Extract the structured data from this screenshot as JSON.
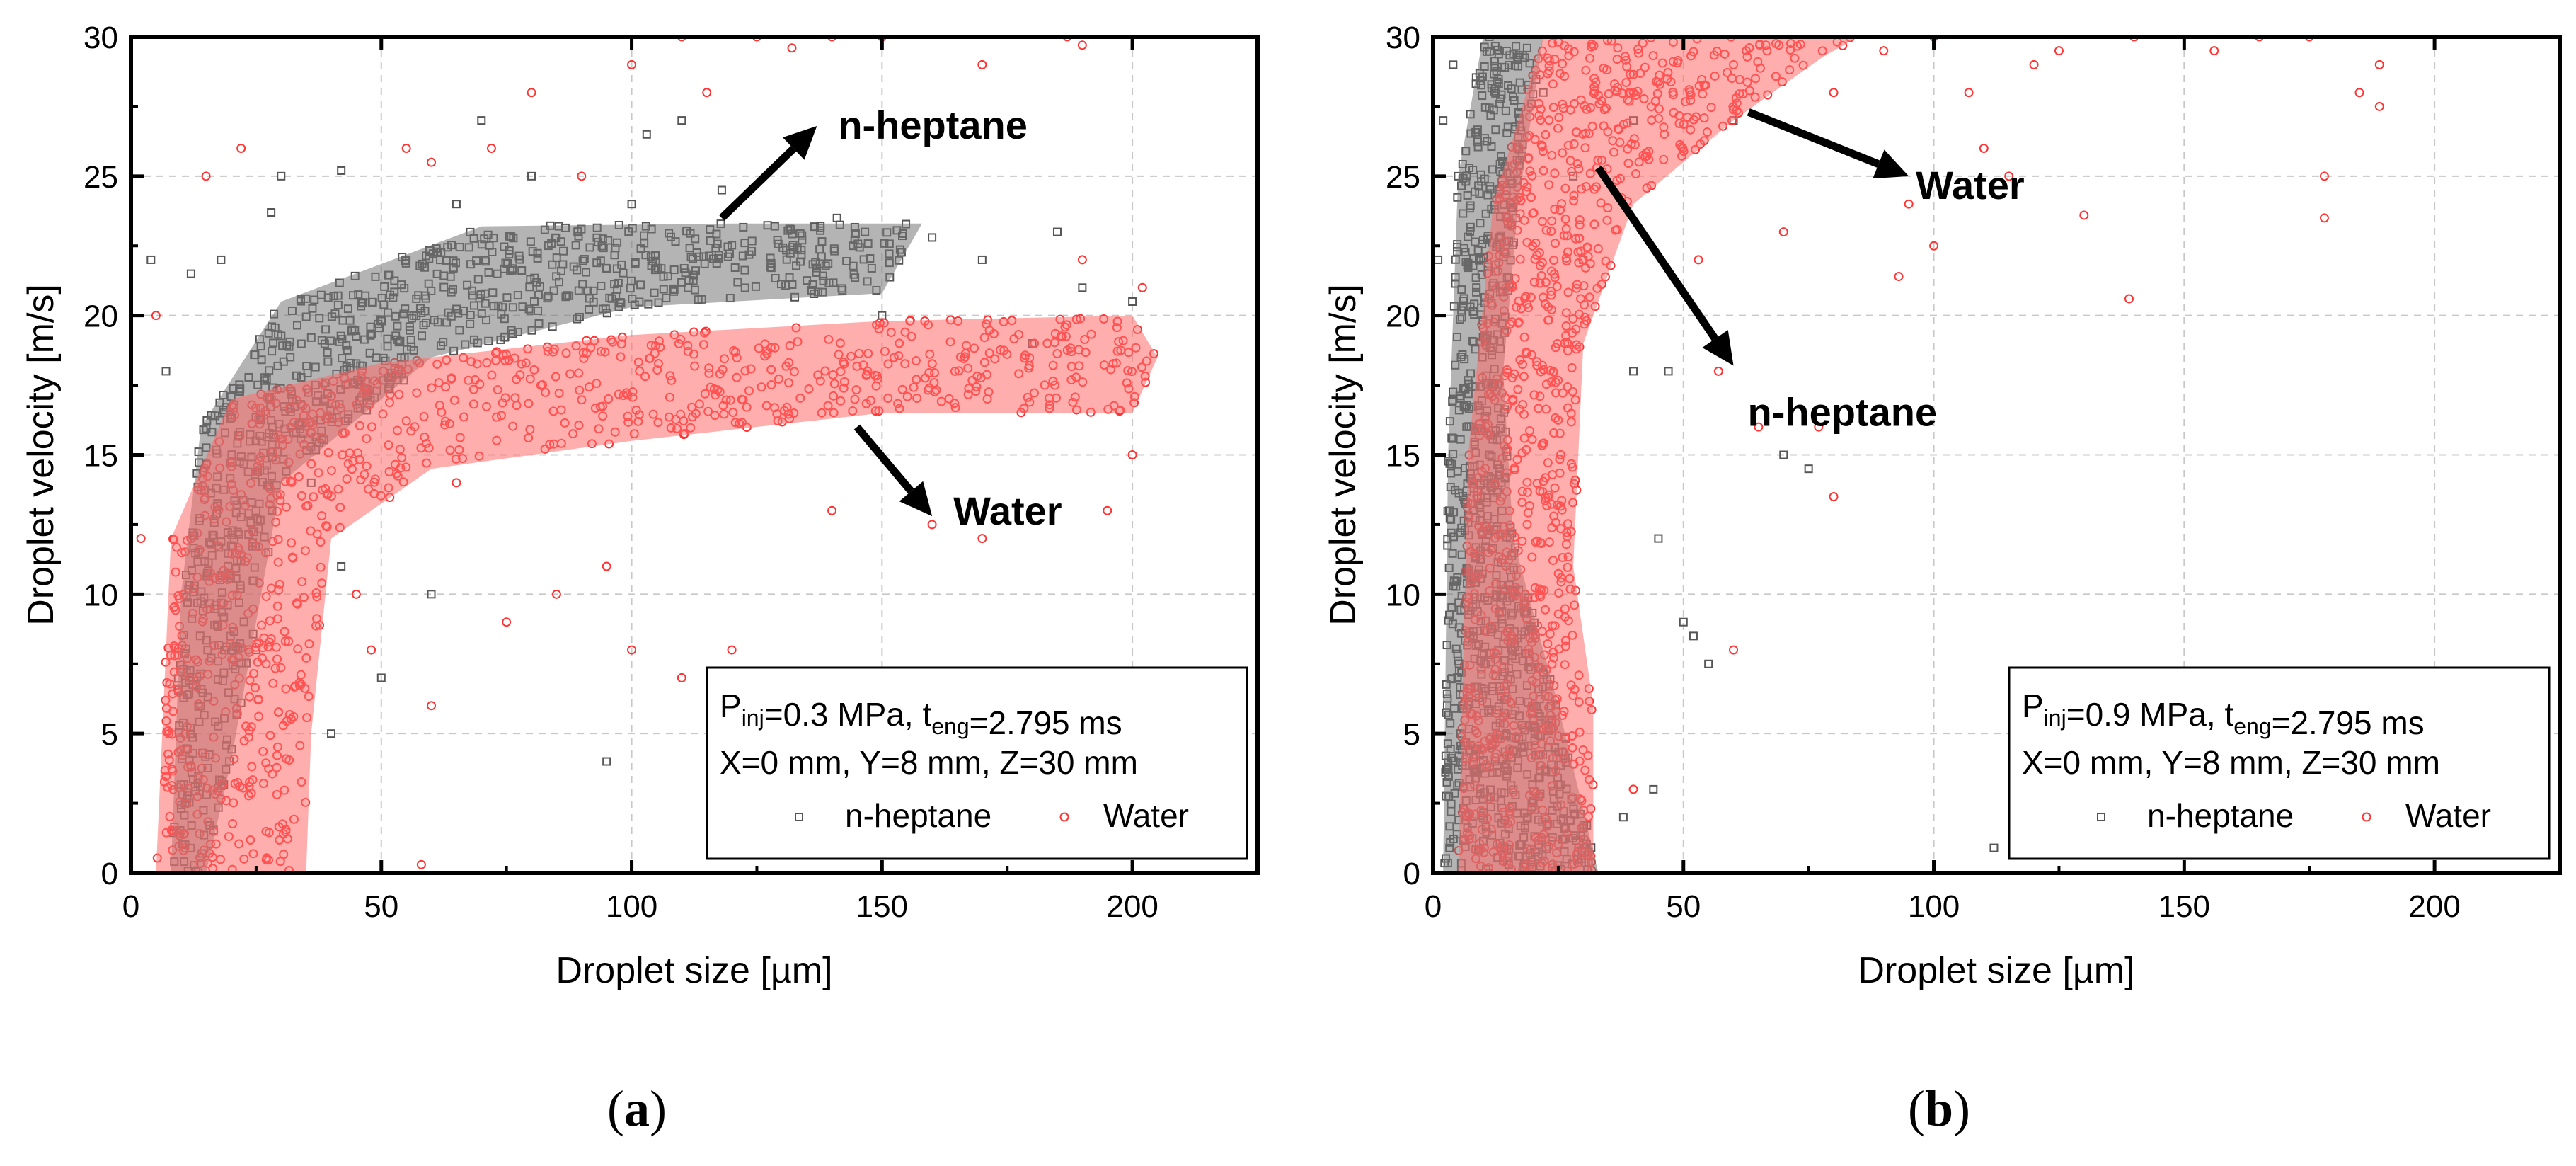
{
  "figure": {
    "panel_labels": [
      {
        "open": "(",
        "letter": "a",
        "close": ")"
      },
      {
        "open": "(",
        "letter": "b",
        "close": ")"
      }
    ],
    "colors": {
      "heptane": "#555555",
      "water": "#ff3333",
      "heptane_band": "#777777",
      "water_band": "#ff6b6b"
    }
  },
  "chart_data": [
    {
      "type": "scatter",
      "panel": "a",
      "xlabel": "Droplet size [µm]",
      "ylabel": "Droplet velocity [m/s]",
      "xlim": [
        0,
        225
      ],
      "ylim": [
        0,
        30
      ],
      "xticks": [
        0,
        50,
        100,
        150,
        200
      ],
      "yticks": [
        0,
        5,
        10,
        15,
        20,
        25,
        30
      ],
      "grid": true,
      "legend_position": "bottom-right",
      "info": {
        "line1": {
          "p": "P",
          "p_sub": "inj",
          "p_val": "=0.3 MPa, ",
          "t": "t",
          "t_sub": "eng",
          "t_val": "=2.795 ms"
        },
        "line2": "X=0 mm, Y=8 mm, Z=30 mm"
      },
      "series": [
        {
          "name": "n-heptane",
          "marker": "square",
          "color": "#555555",
          "envelope": [
            [
              8,
              0
            ],
            [
              10,
              10
            ],
            [
              14,
              16
            ],
            [
              30,
              20.5
            ],
            [
              70,
              23.2
            ],
            [
              120,
              23.3
            ],
            [
              158,
              23.3
            ],
            [
              150,
              20.8
            ],
            [
              100,
              20.3
            ],
            [
              60,
              18.5
            ],
            [
              30,
              14
            ],
            [
              20,
              4
            ],
            [
              15,
              0
            ]
          ],
          "points": [
            [
              4,
              22
            ],
            [
              7,
              18
            ],
            [
              12,
              21.5
            ],
            [
              18,
              22
            ],
            [
              28,
              23.7
            ],
            [
              42,
              25.2
            ],
            [
              65,
              24
            ],
            [
              80,
              25
            ],
            [
              100,
              24
            ],
            [
              103,
              26.5
            ],
            [
              118,
              24.5
            ],
            [
              141,
              23.5
            ],
            [
              160,
              22.8
            ],
            [
              170,
              22
            ],
            [
              185,
              23
            ],
            [
              190,
              21
            ],
            [
              200,
              20.5
            ],
            [
              95,
              4
            ],
            [
              40,
              5
            ],
            [
              50,
              7
            ],
            [
              36,
              14
            ],
            [
              42,
              11
            ],
            [
              30,
              25
            ],
            [
              55,
              22
            ],
            [
              70,
              27
            ],
            [
              110,
              27
            ],
            [
              150,
              20
            ],
            [
              180,
              19
            ],
            [
              60,
              10
            ],
            [
              25,
              8
            ]
          ]
        },
        {
          "name": "Water",
          "marker": "circle",
          "color": "#ff3333",
          "envelope": [
            [
              5,
              0
            ],
            [
              8,
              12
            ],
            [
              20,
              17
            ],
            [
              50,
              18.3
            ],
            [
              100,
              19.3
            ],
            [
              150,
              19.8
            ],
            [
              200,
              20
            ],
            [
              205,
              18.5
            ],
            [
              200,
              16.5
            ],
            [
              150,
              16.5
            ],
            [
              100,
              15.5
            ],
            [
              60,
              14.5
            ],
            [
              40,
              12
            ],
            [
              36,
              5
            ],
            [
              35,
              0
            ]
          ],
          "points": [
            [
              2,
              12
            ],
            [
              5,
              20
            ],
            [
              58,
              0.3
            ],
            [
              60,
              6
            ],
            [
              48,
              8
            ],
            [
              65,
              14
            ],
            [
              95,
              11
            ],
            [
              100,
              8
            ],
            [
              110,
              7
            ],
            [
              120,
              8
            ],
            [
              140,
              13
            ],
            [
              160,
              12.5
            ],
            [
              170,
              12
            ],
            [
              195,
              13
            ],
            [
              200,
              15
            ],
            [
              202,
              21
            ],
            [
              190,
              22
            ],
            [
              183,
              19
            ],
            [
              100,
              29
            ],
            [
              110,
              30
            ],
            [
              125,
              30
            ],
            [
              132,
              29.6
            ],
            [
              150,
              30
            ],
            [
              170,
              29
            ],
            [
              187,
              30
            ],
            [
              190,
              29.7
            ],
            [
              72,
              26
            ],
            [
              80,
              28
            ],
            [
              90,
              25
            ],
            [
              60,
              25.5
            ],
            [
              55,
              26
            ],
            [
              75,
              9
            ],
            [
              85,
              10
            ],
            [
              45,
              10
            ],
            [
              15,
              25
            ],
            [
              22,
              26
            ],
            [
              140,
              30
            ],
            [
              115,
              28
            ]
          ]
        }
      ],
      "annotations": [
        {
          "text": "n-heptane",
          "arrow_from": [
            118,
            23.5
          ],
          "arrow_to": [
            137,
            26.8
          ]
        },
        {
          "text": "Water",
          "arrow_from": [
            145,
            16
          ],
          "arrow_to": [
            160,
            12.8
          ]
        }
      ]
    },
    {
      "type": "scatter",
      "panel": "b",
      "xlabel": "Droplet size [µm]",
      "ylabel": "Droplet velocity [m/s]",
      "xlim": [
        0,
        225
      ],
      "ylim": [
        0,
        30
      ],
      "xticks": [
        0,
        50,
        100,
        150,
        200
      ],
      "yticks": [
        0,
        5,
        10,
        15,
        20,
        25,
        30
      ],
      "grid": true,
      "legend_position": "bottom-right",
      "info": {
        "line1": {
          "p": "P",
          "p_sub": "inj",
          "p_val": "=0.9 MPa, ",
          "t": "t",
          "t_sub": "eng",
          "t_val": "=2.795 ms"
        },
        "line2": "X=0 mm, Y=8 mm, Z=30 mm"
      },
      "series": [
        {
          "name": "n-heptane",
          "marker": "square",
          "color": "#555555",
          "envelope": [
            [
              2,
              0
            ],
            [
              3,
              15
            ],
            [
              5,
              25
            ],
            [
              10,
              30
            ],
            [
              22,
              30
            ],
            [
              17,
              24
            ],
            [
              14,
              18
            ],
            [
              16,
              12
            ],
            [
              25,
              6
            ],
            [
              33,
              0
            ]
          ],
          "points": [
            [
              1,
              22
            ],
            [
              2,
              27
            ],
            [
              4,
              29
            ],
            [
              22,
              28
            ],
            [
              40,
              18
            ],
            [
              45,
              12
            ],
            [
              50,
              9
            ],
            [
              52,
              8.5
            ],
            [
              55,
              7.5
            ],
            [
              70,
              15
            ],
            [
              75,
              14.5
            ],
            [
              112,
              0.9
            ],
            [
              38,
              2
            ],
            [
              44,
              3
            ],
            [
              30,
              22
            ],
            [
              28,
              25
            ],
            [
              47,
              18
            ],
            [
              60,
              27
            ],
            [
              40,
              27
            ]
          ]
        },
        {
          "name": "Water",
          "marker": "circle",
          "color": "#ff3333",
          "envelope": [
            [
              5,
              0
            ],
            [
              7,
              15
            ],
            [
              12,
              24
            ],
            [
              22,
              30
            ],
            [
              85,
              30
            ],
            [
              78,
              29.3
            ],
            [
              60,
              27
            ],
            [
              40,
              24
            ],
            [
              30,
              19
            ],
            [
              28,
              11
            ],
            [
              32,
              6
            ],
            [
              32,
              0
            ]
          ],
          "points": [
            [
              40,
              28
            ],
            [
              60,
              29
            ],
            [
              80,
              28
            ],
            [
              90,
              29.5
            ],
            [
              100,
              30
            ],
            [
              107,
              28
            ],
            [
              120,
              29
            ],
            [
              125,
              29.5
            ],
            [
              140,
              30
            ],
            [
              156,
              29.5
            ],
            [
              165,
              30
            ],
            [
              175,
              30
            ],
            [
              185,
              28
            ],
            [
              189,
              27.5
            ],
            [
              189,
              29
            ],
            [
              178,
              23.5
            ],
            [
              178,
              25
            ],
            [
              139,
              20.6
            ],
            [
              130,
              23.6
            ],
            [
              100,
              22.5
            ],
            [
              93,
              21.4
            ],
            [
              80,
              13.5
            ],
            [
              77,
              16
            ],
            [
              60,
              8
            ],
            [
              57,
              18
            ],
            [
              40,
              3
            ],
            [
              53,
              22
            ],
            [
              65,
              16
            ],
            [
              70,
              23
            ],
            [
              115,
              25
            ],
            [
              95,
              24
            ],
            [
              110,
              26
            ]
          ]
        }
      ],
      "annotations": [
        {
          "text": "Water",
          "arrow_from": [
            63,
            27.3
          ],
          "arrow_to": [
            95,
            25
          ]
        },
        {
          "text": "n-heptane",
          "arrow_from": [
            33,
            25.3
          ],
          "arrow_to": [
            60,
            18.2
          ]
        }
      ]
    }
  ]
}
